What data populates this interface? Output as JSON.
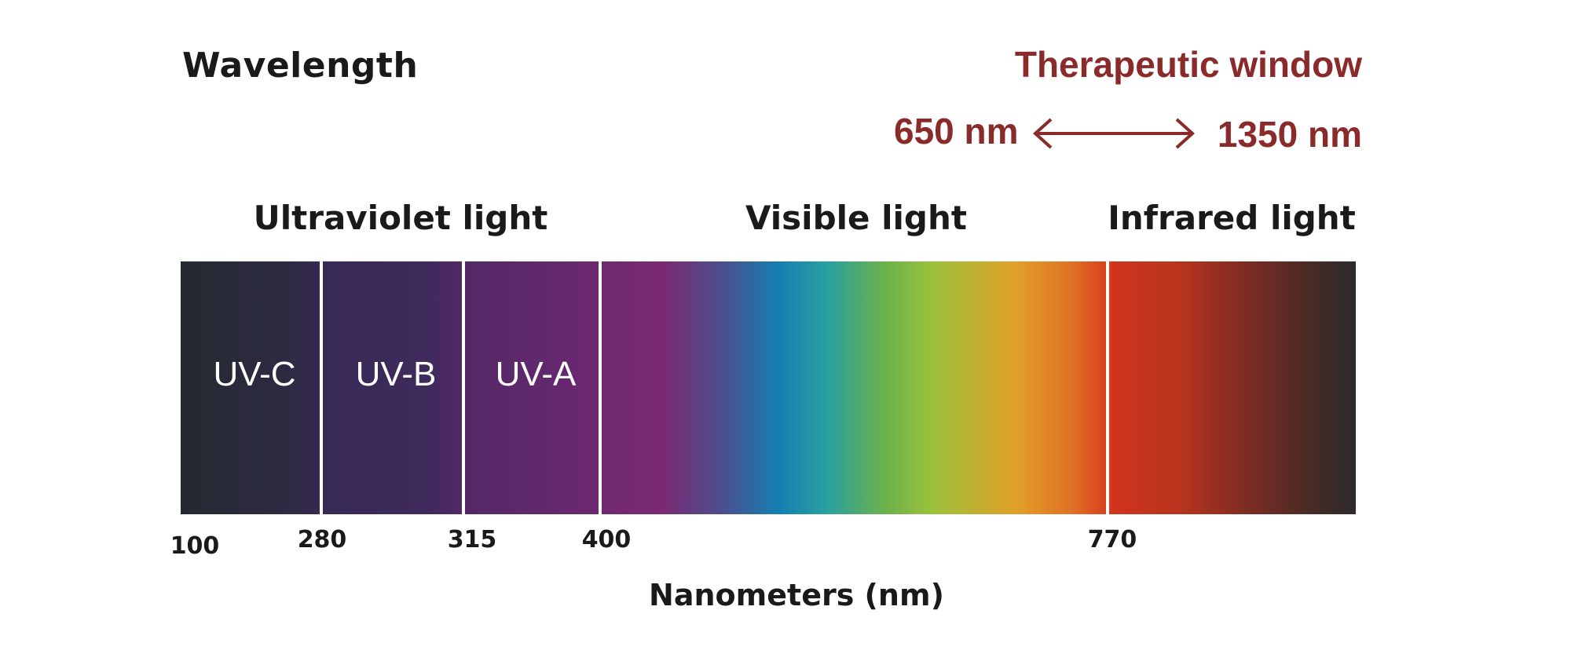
{
  "title": "Wavelength",
  "therapeutic_window": {
    "title": "Therapeutic window",
    "start": "650 nm",
    "end": "1350 nm",
    "color": "#8a2a2a"
  },
  "regions": {
    "ultraviolet": "Ultraviolet light",
    "visible": "Visible light",
    "infrared": "Infrared light"
  },
  "bands": {
    "uvc": "UV-C",
    "uvb": "UV-B",
    "uva": "UV-A"
  },
  "ticks": {
    "t100": "100",
    "t280": "280",
    "t315": "315",
    "t400": "400",
    "t770": "770"
  },
  "axis_title": "Nanometers (nm)"
}
